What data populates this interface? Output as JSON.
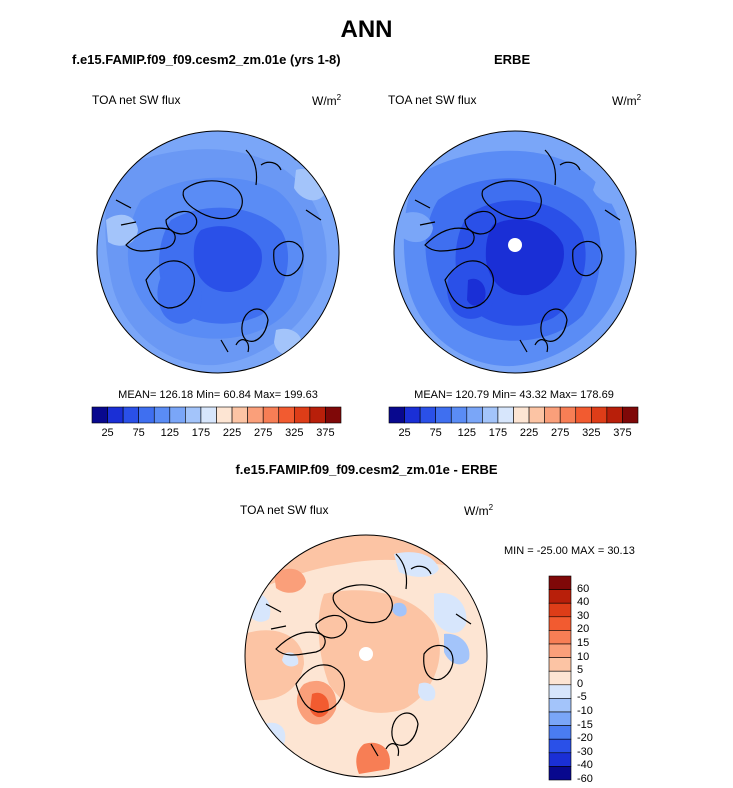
{
  "header": {
    "title": "ANN"
  },
  "panels": {
    "model": {
      "title": "f.e15.FAMIP.f09_f09.cesm2_zm.01e (yrs 1-8)",
      "variable": "TOA net SW flux",
      "units_base": "W/m",
      "units_exp": "2",
      "stats": "MEAN= 126.18  Min=  60.84  Max= 199.63"
    },
    "obs": {
      "title": "ERBE",
      "variable": "TOA net SW flux",
      "units_base": "W/m",
      "units_exp": "2",
      "stats": "MEAN= 120.79  Min=  43.32  Max= 178.69"
    },
    "diff": {
      "title": "f.e15.FAMIP.f09_f09.cesm2_zm.01e - ERBE",
      "variable": "TOA net SW flux",
      "units_base": "W/m",
      "units_exp": "2",
      "stats": "MIN = -25.00 MAX =  30.13"
    }
  },
  "colorbars": {
    "abs": {
      "colors": [
        "#08088e",
        "#1a2fd6",
        "#2a50e8",
        "#3f6ff0",
        "#5a8cf5",
        "#7aa6f8",
        "#a3c4fa",
        "#d7e6fc",
        "#fde5d3",
        "#fcc4a4",
        "#fa9f7a",
        "#f77e55",
        "#f25b30",
        "#de3d18",
        "#b81f0a",
        "#7f0808"
      ],
      "labels": [
        "25",
        "75",
        "125",
        "175",
        "225",
        "275",
        "325",
        "375"
      ]
    },
    "diff": {
      "colors": [
        "#08088e",
        "#1a2fd6",
        "#2a50e8",
        "#4a7cf2",
        "#7aa6f8",
        "#a3c4fa",
        "#d7e6fc",
        "#fde5d3",
        "#fcc4a4",
        "#fa9f7a",
        "#f77e55",
        "#f25b30",
        "#de3d18",
        "#b81f0a",
        "#7f0808"
      ],
      "labels": [
        "60",
        "40",
        "30",
        "20",
        "15",
        "10",
        "5",
        "0",
        "-5",
        "-10",
        "-15",
        "-20",
        "-30",
        "-40",
        "-60"
      ]
    }
  },
  "colors": {
    "model_field": "#6a98f4",
    "obs_field": "#5a8cf5",
    "diff_field": "#fcc4a4",
    "coastline": "#000000"
  }
}
